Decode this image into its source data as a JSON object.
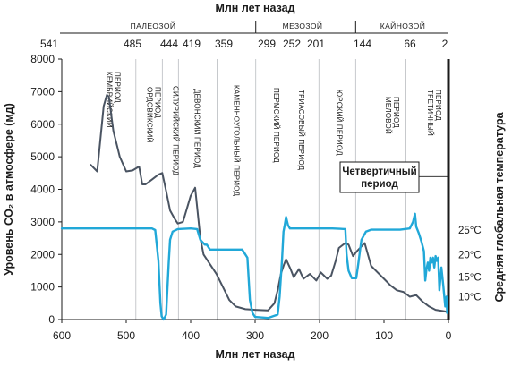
{
  "chart_data": {
    "type": "line",
    "top_axis": {
      "title": "Млн лет назад",
      "eras": [
        {
          "label": "ПАЛЕОЗОЙ",
          "from": 541,
          "to": 299
        },
        {
          "label": "МЕЗОЗОЙ",
          "from": 299,
          "to": 144
        },
        {
          "label": "КАЙНОЗОЙ",
          "from": 144,
          "to": 2
        }
      ],
      "ticks": [
        541,
        485,
        444,
        419,
        359,
        299,
        252,
        201,
        144,
        66,
        2
      ]
    },
    "periods": [
      {
        "lines": [
          "КЕМБРИЙСКИЙ",
          "ПЕРИОД"
        ],
        "at": 528
      },
      {
        "lines": [
          "ОРДОВИКСКИЙ",
          "ПЕРИОД"
        ],
        "at": 465
      },
      {
        "lines": [
          "СИЛУРИЙСКИЙ ПЕРИОД"
        ],
        "at": 431
      },
      {
        "lines": [
          "ДЕВОНСКИЙ ПЕРИОД"
        ],
        "at": 398
      },
      {
        "lines": [
          "КАМЕННОУГОЛЬНЫЙ ПЕРИОД"
        ],
        "at": 337
      },
      {
        "lines": [
          "ПЕРМСКИЙ ПЕРИОД"
        ],
        "at": 275
      },
      {
        "lines": [
          "ТРИАСОВЫЙ ПЕРИОД"
        ],
        "at": 236
      },
      {
        "lines": [
          "ЮРСКИЙ ПЕРИОД"
        ],
        "at": 177
      },
      {
        "lines": [
          "МЕЛОВОЙ",
          "ПЕРИОД"
        ],
        "at": 95
      },
      {
        "lines": [
          "ТРЕТИЧНЫЙ",
          "ПЕРИОД"
        ],
        "at": 30
      }
    ],
    "quaternary_label": [
      "Четвертичный",
      "период"
    ],
    "x_axis": {
      "title": "Млн лет назад",
      "ticks": [
        600,
        500,
        400,
        300,
        200,
        100,
        0
      ],
      "range": [
        600,
        0
      ]
    },
    "y_axis": {
      "title": "Уровень CO₂ в атмосфере (мд)",
      "ticks": [
        0,
        1000,
        2000,
        3000,
        4000,
        5000,
        6000,
        7000,
        8000
      ],
      "range": [
        0,
        8000
      ]
    },
    "y2_axis": {
      "title": "Средняя глобальная температура",
      "ticks": [
        "10°C",
        "15°C",
        "20°C",
        "25°C"
      ],
      "tick_positions_ppm": [
        700,
        1300,
        2000,
        2750
      ]
    },
    "series": [
      {
        "key": "co2",
        "color": "#4a5462",
        "points": [
          [
            555,
            4750
          ],
          [
            545,
            4550
          ],
          [
            535,
            6550
          ],
          [
            530,
            6900
          ],
          [
            527,
            6850
          ],
          [
            520,
            5800
          ],
          [
            510,
            5000
          ],
          [
            500,
            4550
          ],
          [
            490,
            4580
          ],
          [
            480,
            4700
          ],
          [
            475,
            4150
          ],
          [
            470,
            4150
          ],
          [
            460,
            4300
          ],
          [
            450,
            4450
          ],
          [
            444,
            4500
          ],
          [
            438,
            3950
          ],
          [
            432,
            3350
          ],
          [
            425,
            3100
          ],
          [
            420,
            2950
          ],
          [
            412,
            3000
          ],
          [
            400,
            3800
          ],
          [
            393,
            4050
          ],
          [
            385,
            2500
          ],
          [
            380,
            2000
          ],
          [
            370,
            1700
          ],
          [
            360,
            1400
          ],
          [
            350,
            1000
          ],
          [
            340,
            600
          ],
          [
            330,
            400
          ],
          [
            315,
            320
          ],
          [
            300,
            300
          ],
          [
            280,
            280
          ],
          [
            270,
            500
          ],
          [
            265,
            900
          ],
          [
            260,
            1400
          ],
          [
            255,
            1700
          ],
          [
            252,
            1850
          ],
          [
            245,
            1550
          ],
          [
            240,
            1300
          ],
          [
            232,
            1550
          ],
          [
            225,
            1250
          ],
          [
            215,
            1400
          ],
          [
            205,
            1200
          ],
          [
            198,
            1450
          ],
          [
            188,
            1250
          ],
          [
            182,
            1350
          ],
          [
            175,
            1800
          ],
          [
            170,
            2200
          ],
          [
            160,
            2350
          ],
          [
            155,
            2300
          ],
          [
            148,
            1950
          ],
          [
            142,
            2100
          ],
          [
            130,
            2350
          ],
          [
            120,
            1650
          ],
          [
            110,
            1450
          ],
          [
            100,
            1250
          ],
          [
            90,
            1050
          ],
          [
            80,
            900
          ],
          [
            70,
            850
          ],
          [
            60,
            700
          ],
          [
            50,
            750
          ],
          [
            40,
            550
          ],
          [
            30,
            400
          ],
          [
            20,
            300
          ],
          [
            5,
            250
          ],
          [
            2,
            220
          ]
        ]
      },
      {
        "key": "temperature",
        "color": "#21a8d8",
        "points": [
          [
            600,
            2800
          ],
          [
            460,
            2800
          ],
          [
            455,
            2750
          ],
          [
            450,
            1800
          ],
          [
            447,
            500
          ],
          [
            445,
            100
          ],
          [
            442,
            0
          ],
          [
            438,
            150
          ],
          [
            434,
            1750
          ],
          [
            432,
            2450
          ],
          [
            428,
            2700
          ],
          [
            420,
            2780
          ],
          [
            400,
            2800
          ],
          [
            390,
            2780
          ],
          [
            385,
            2450
          ],
          [
            378,
            2300
          ],
          [
            375,
            2300
          ],
          [
            370,
            2150
          ],
          [
            320,
            2150
          ],
          [
            312,
            1900
          ],
          [
            308,
            600
          ],
          [
            304,
            200
          ],
          [
            300,
            80
          ],
          [
            280,
            50
          ],
          [
            265,
            150
          ],
          [
            262,
            700
          ],
          [
            258,
            1900
          ],
          [
            256,
            2700
          ],
          [
            254,
            2900
          ],
          [
            252,
            3150
          ],
          [
            249,
            2900
          ],
          [
            246,
            2800
          ],
          [
            220,
            2800
          ],
          [
            200,
            2800
          ],
          [
            180,
            2800
          ],
          [
            160,
            2780
          ],
          [
            158,
            2000
          ],
          [
            155,
            1500
          ],
          [
            150,
            1270
          ],
          [
            143,
            1270
          ],
          [
            140,
            1700
          ],
          [
            135,
            2450
          ],
          [
            128,
            2700
          ],
          [
            120,
            2760
          ],
          [
            100,
            2760
          ],
          [
            75,
            2760
          ],
          [
            60,
            2800
          ],
          [
            55,
            3000
          ],
          [
            52,
            3250
          ],
          [
            50,
            2850
          ],
          [
            46,
            2650
          ],
          [
            42,
            2400
          ],
          [
            38,
            2100
          ],
          [
            36,
            1200
          ],
          [
            34,
            1550
          ],
          [
            32,
            1750
          ],
          [
            30,
            1500
          ],
          [
            28,
            1900
          ],
          [
            26,
            1750
          ],
          [
            24,
            1900
          ],
          [
            22,
            1600
          ],
          [
            20,
            1950
          ],
          [
            18,
            1800
          ],
          [
            16,
            1900
          ],
          [
            14,
            900
          ],
          [
            11,
            1600
          ],
          [
            8,
            1050
          ],
          [
            5,
            400
          ],
          [
            3,
            700
          ],
          [
            2,
            200
          ]
        ]
      }
    ]
  }
}
